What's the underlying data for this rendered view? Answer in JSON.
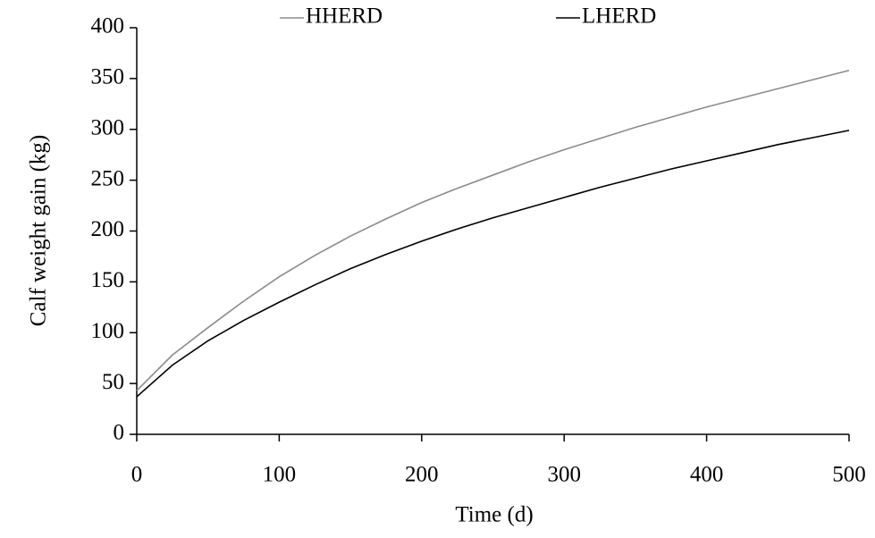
{
  "chart_data": {
    "type": "line",
    "x_label": "Time (d)",
    "y_label": "Calf weight gain (kg)",
    "x": [
      0,
      25,
      50,
      75,
      100,
      125,
      150,
      175,
      200,
      225,
      250,
      275,
      300,
      325,
      350,
      375,
      400,
      425,
      450,
      475,
      500
    ],
    "series": [
      {
        "name": "HHERD",
        "color": "#8c8c8c",
        "values": [
          43,
          78,
          105,
          131,
          155,
          176,
          195,
          212,
          228,
          242,
          255,
          268,
          280,
          291,
          302,
          312,
          322,
          331,
          340,
          349,
          358
        ]
      },
      {
        "name": "LHERD",
        "color": "#000000",
        "values": [
          37,
          68,
          92,
          112,
          130,
          147,
          163,
          177,
          190,
          202,
          213,
          223,
          233,
          243,
          252,
          261,
          269,
          277,
          285,
          292,
          299
        ]
      }
    ],
    "xlim": [
      0,
      500
    ],
    "xticks": [
      0,
      100,
      200,
      300,
      400,
      500
    ],
    "ylim": [
      0,
      400
    ],
    "yticks": [
      0,
      50,
      100,
      150,
      200,
      250,
      300,
      350,
      400
    ],
    "grid": false,
    "legend": "top"
  }
}
